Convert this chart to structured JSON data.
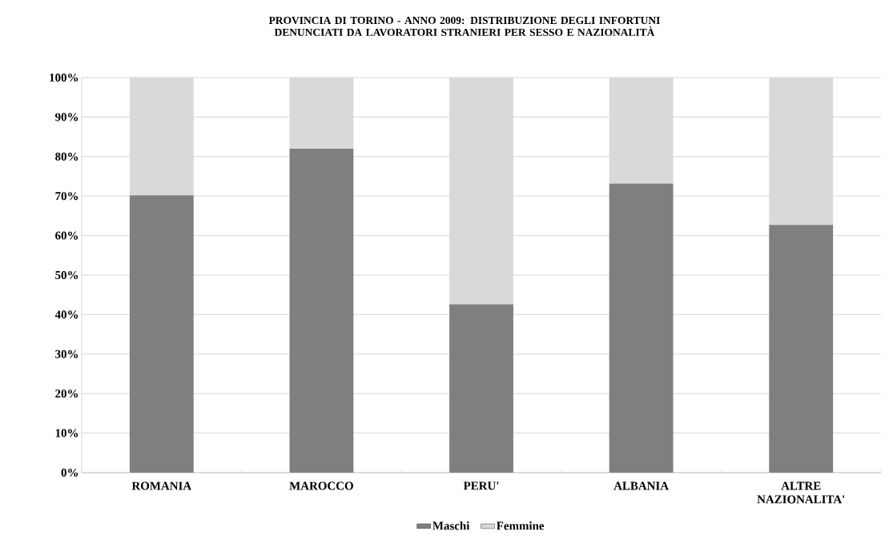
{
  "chart_data": {
    "type": "bar",
    "stacked": true,
    "title": "PROVINCIA DI TORINO - ANNO 2009: DISTRIBUZIONE DEGLI INFORTUNI DENUNCIATI DA LAVORATORI STRANIERI PER SESSO E NAZIONALITÀ",
    "categories": [
      "ROMANIA",
      "MAROCCO",
      "PERU'",
      "ALBANIA",
      "ALTRE NAZIONALITA'"
    ],
    "series": [
      {
        "name": "Maschi",
        "color": "#7f7f7f",
        "values": [
          70.2,
          82.0,
          42.6,
          73.2,
          62.7
        ]
      },
      {
        "name": "Femmine",
        "color": "#d9d9d9",
        "values": [
          29.8,
          18.0,
          57.4,
          26.8,
          37.3
        ]
      }
    ],
    "ylim": [
      0,
      100
    ],
    "yticks": [
      {
        "value": 0,
        "label": "0%"
      },
      {
        "value": 10,
        "label": "10%"
      },
      {
        "value": 20,
        "label": "20%"
      },
      {
        "value": 30,
        "label": "30%"
      },
      {
        "value": 40,
        "label": "40%"
      },
      {
        "value": 50,
        "label": "50%"
      },
      {
        "value": 60,
        "label": "60%"
      },
      {
        "value": 70,
        "label": "70%"
      },
      {
        "value": 80,
        "label": "80%"
      },
      {
        "value": 90,
        "label": "90%"
      },
      {
        "value": 100,
        "label": "100%"
      }
    ],
    "grid": "y",
    "legend": "bottom"
  }
}
